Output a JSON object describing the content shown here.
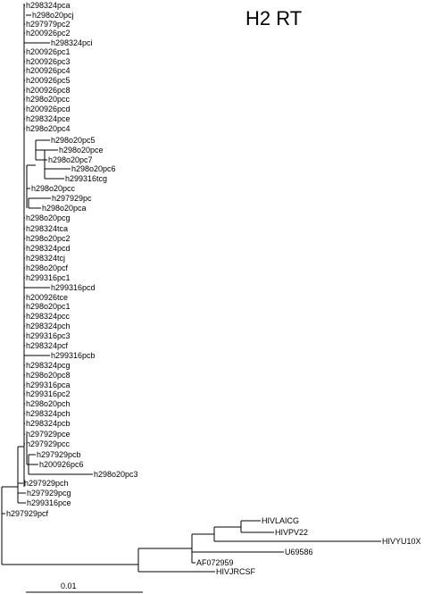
{
  "title": "H2 RT",
  "leaves": [
    "h298324pca",
    "h298o20pcj",
    "h297979pc2",
    "h200926pc2",
    "h298324pci",
    "h200926pc1",
    "h200926pc3",
    "h200926pc4",
    "h200926pc5",
    "h200926pc8",
    "h298o20pcc",
    "h200926pcd",
    "h298324pce",
    "h298o20pc4",
    "h298o20pc5",
    "h298o20pce",
    "h298o20pc7",
    "h298o20pc6",
    "h299316tcg",
    "h298o20pcc",
    "h297929pc",
    "h298o20pca",
    "h298o20pcg",
    "h298324tca",
    "h298o20pc2",
    "h298324pcd",
    "h298324tcj",
    "h298o20pcf",
    "h299316pc1",
    "h299316pcd",
    "h200926tce",
    "h298o20pc1",
    "h298324pcc",
    "h298324pch",
    "h299316pc3",
    "h298324pcf",
    "h299316pcb",
    "h298324pcg",
    "h298o20pc8",
    "h299316pca",
    "h299316pc2",
    "h298o20pch",
    "h298324pch",
    "h298324pcb",
    "h297929pce",
    "h297929pcc",
    "h297929pcb",
    "h200926pc6",
    "h298o20pc3",
    "h297929pch",
    "h297929pcg",
    "h299316pce",
    "h297929pcf",
    "HIVLAICG",
    "HIVPV22",
    "HIVYU10X",
    "U69586",
    "AF072959",
    "HIVJRCSF"
  ],
  "scale_bar": {
    "label": "0.01"
  }
}
